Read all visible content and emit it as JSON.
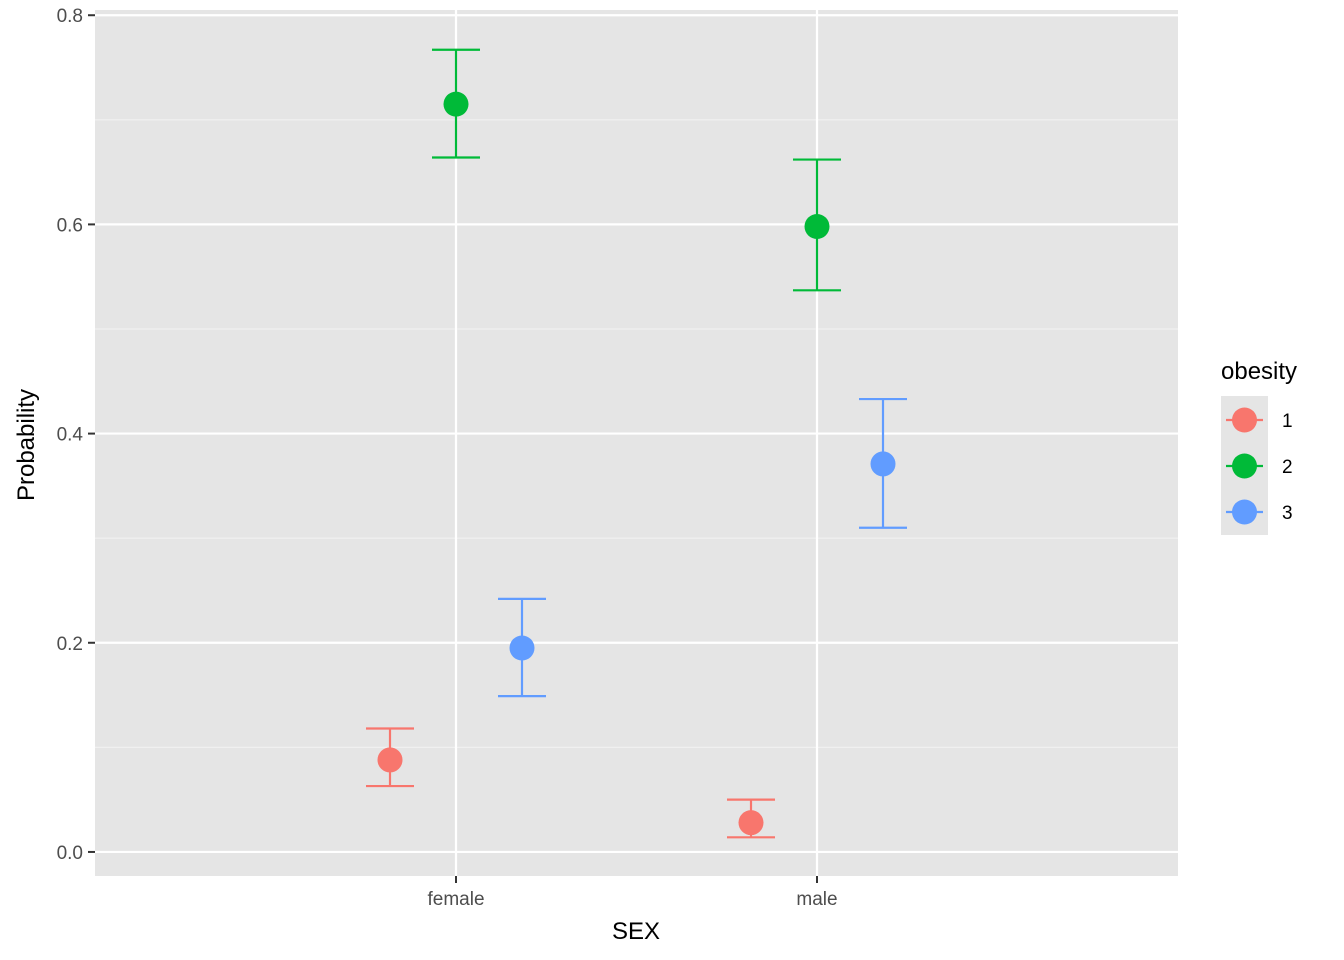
{
  "chart_data": {
    "type": "scatter",
    "subtype": "point-with-errorbars",
    "title": "",
    "xlabel": "SEX",
    "ylabel": "Probability",
    "categories": [
      "female",
      "male"
    ],
    "ylim": [
      -0.023,
      0.805
    ],
    "yticks": [
      {
        "value": 0.0,
        "label": "0.0"
      },
      {
        "value": 0.2,
        "label": "0.2"
      },
      {
        "value": 0.4,
        "label": "0.4"
      },
      {
        "value": 0.6,
        "label": "0.6"
      },
      {
        "value": 0.8,
        "label": "0.8"
      }
    ],
    "grid": true,
    "legend": {
      "title": "obesity",
      "position": "right"
    },
    "series": [
      {
        "name": "1",
        "color": "#F8766D",
        "points": [
          {
            "category": "female",
            "y": 0.088,
            "lower": 0.063,
            "upper": 0.118
          },
          {
            "category": "male",
            "y": 0.028,
            "lower": 0.014,
            "upper": 0.05
          }
        ]
      },
      {
        "name": "2",
        "color": "#00BA38",
        "points": [
          {
            "category": "female",
            "y": 0.715,
            "lower": 0.664,
            "upper": 0.767
          },
          {
            "category": "male",
            "y": 0.598,
            "lower": 0.537,
            "upper": 0.662
          }
        ]
      },
      {
        "name": "3",
        "color": "#619CFF",
        "points": [
          {
            "category": "female",
            "y": 0.195,
            "lower": 0.149,
            "upper": 0.242
          },
          {
            "category": "male",
            "y": 0.371,
            "lower": 0.31,
            "upper": 0.433
          }
        ]
      }
    ]
  }
}
